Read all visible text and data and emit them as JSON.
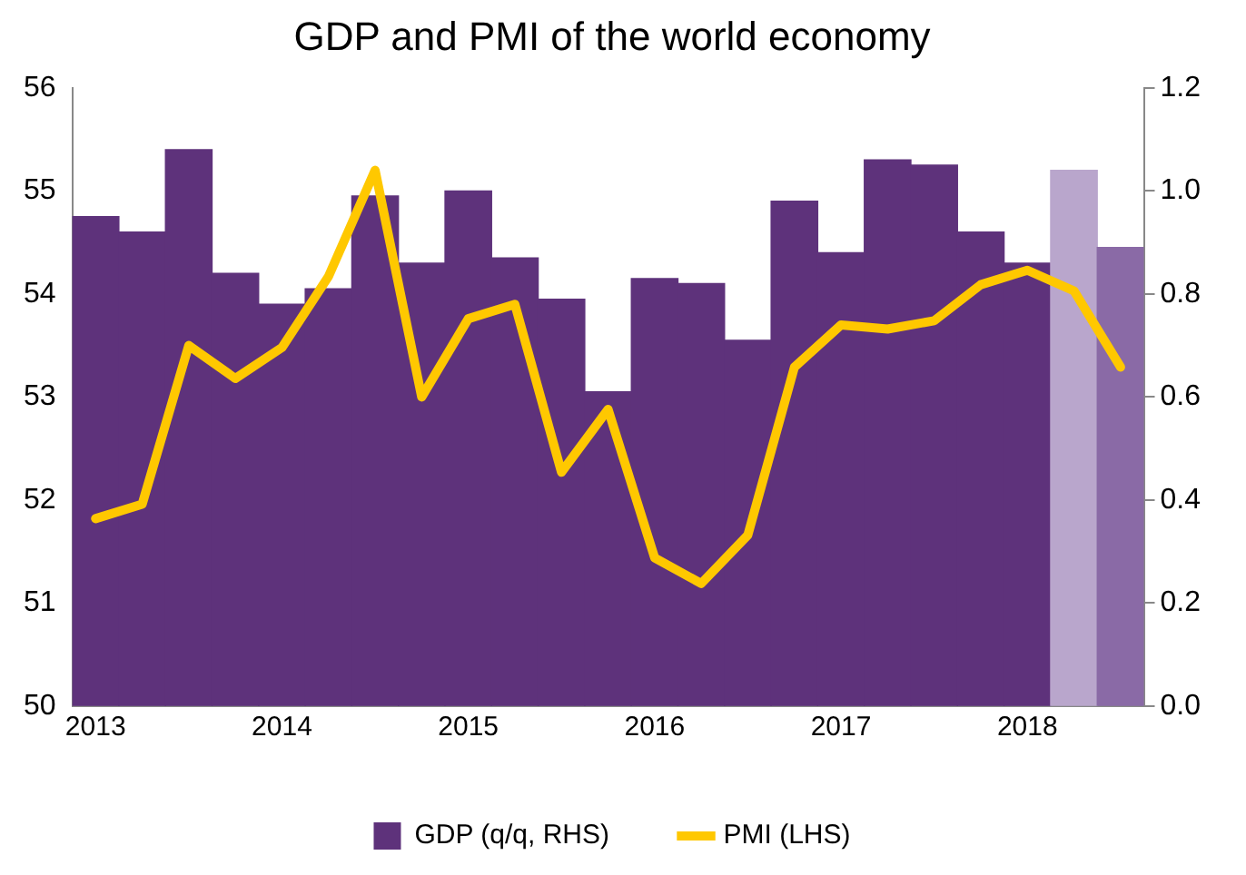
{
  "chart_data": {
    "type": "bar",
    "title": "GDP and PMI of the world economy",
    "categories": [
      "2013",
      null,
      null,
      null,
      "2014",
      null,
      null,
      null,
      "2015",
      null,
      null,
      null,
      "2016",
      null,
      null,
      null,
      "2017",
      null,
      null,
      null,
      "2018",
      null,
      null
    ],
    "series": [
      {
        "name": "GDP (q/q, RHS)",
        "axis": "y2",
        "color": "#5e327b",
        "colors": [
          "#5e327b",
          "#5e327b",
          "#5e327b",
          "#5e327b",
          "#5e327b",
          "#5e327b",
          "#5e327b",
          "#5e327b",
          "#5e327b",
          "#5e327b",
          "#5e327b",
          "#5e327b",
          "#5e327b",
          "#5e327b",
          "#5e327b",
          "#5e327b",
          "#5e327b",
          "#5e327b",
          "#5e327b",
          "#5e327b",
          "#5e327b",
          "#b9a6cc",
          "#8a6aa6"
        ],
        "values": [
          0.95,
          0.92,
          1.08,
          0.84,
          0.78,
          0.81,
          0.99,
          0.86,
          1.0,
          0.87,
          0.79,
          0.61,
          0.83,
          0.82,
          0.71,
          0.98,
          0.88,
          1.06,
          1.05,
          0.92,
          0.86,
          1.04,
          0.89
        ]
      },
      {
        "name": "PMI (LHS)",
        "type": "line",
        "color": "#ffc800",
        "values": [
          51.82,
          51.96,
          53.5,
          53.18,
          53.48,
          54.17,
          55.2,
          53.0,
          53.76,
          53.9,
          52.27,
          52.88,
          51.44,
          51.19,
          51.66,
          53.29,
          53.7,
          53.66,
          53.74,
          54.09,
          54.23,
          54.03,
          53.29
        ]
      }
    ],
    "ylim": [
      50,
      56
    ],
    "yticks": [
      50,
      51,
      52,
      53,
      54,
      55,
      56
    ],
    "y2lim": [
      0,
      1.2
    ],
    "y2ticks": [
      {
        "value": 0,
        "label": "0.0"
      },
      {
        "value": 0.2,
        "label": "0.2"
      },
      {
        "value": 0.4,
        "label": "0.4"
      },
      {
        "value": 0.6,
        "label": "0.6"
      },
      {
        "value": 0.8,
        "label": "0.8"
      },
      {
        "value": 1,
        "label": "1.0"
      },
      {
        "value": 1.2,
        "label": "1.2"
      }
    ],
    "grid": false,
    "legend": "bottom",
    "marker": "none",
    "line_style": "solid"
  }
}
